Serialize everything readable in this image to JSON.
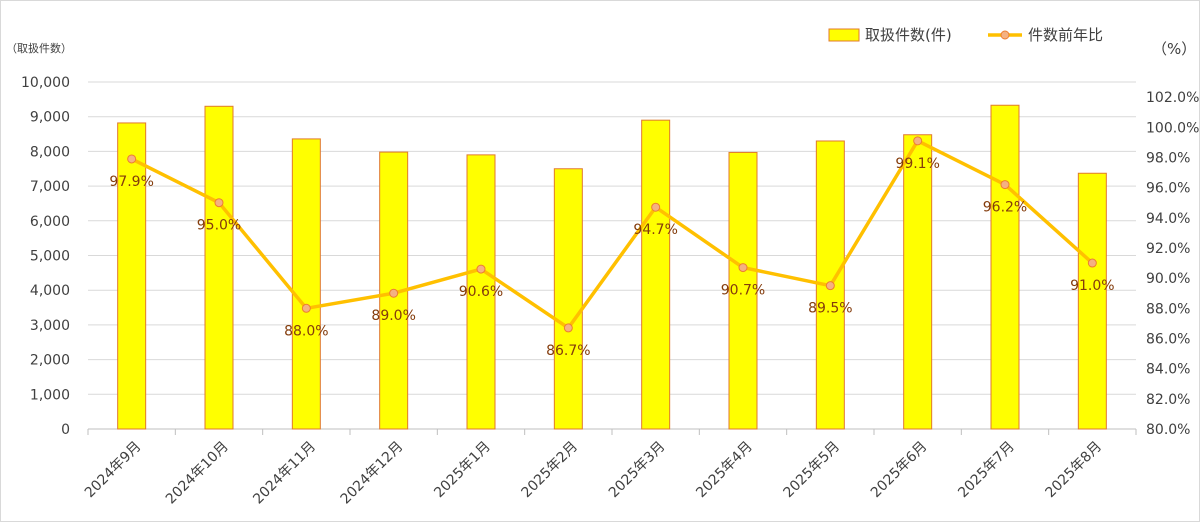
{
  "chart_data": {
    "type": "bar",
    "categories": [
      "2024年9月",
      "2024年10月",
      "2024年11月",
      "2024年12月",
      "2025年1月",
      "2025年2月",
      "2025年3月",
      "2025年4月",
      "2025年5月",
      "2025年6月",
      "2025年7月",
      "2025年8月"
    ],
    "series": [
      {
        "name": "取扱件数(件)",
        "type": "bar",
        "axis": "left",
        "color": "#ffff00",
        "values": [
          8820,
          9300,
          8360,
          7980,
          7900,
          7500,
          8900,
          7970,
          8300,
          8480,
          9330,
          7370
        ]
      },
      {
        "name": "件数前年比",
        "type": "line",
        "axis": "right",
        "color": "#ffc000",
        "values": [
          97.9,
          95.0,
          88.0,
          89.0,
          90.6,
          86.7,
          94.7,
          90.7,
          89.5,
          99.1,
          96.2,
          91.0
        ],
        "labels": [
          "97.9%",
          "95.0%",
          "88.0%",
          "89.0%",
          "90.6%",
          "86.7%",
          "94.7%",
          "90.7%",
          "89.5%",
          "99.1%",
          "96.2%",
          "91.0%"
        ]
      }
    ],
    "y_left": {
      "label": "（取扱件数）",
      "range": [
        0,
        10000
      ],
      "ticks": [
        "0",
        "1,000",
        "2,000",
        "3,000",
        "4,000",
        "5,000",
        "6,000",
        "7,000",
        "8,000",
        "9,000",
        "10,000"
      ]
    },
    "y_right": {
      "label": "（%）",
      "range": [
        80,
        103
      ],
      "ticks": [
        "80.0%",
        "82.0%",
        "84.0%",
        "86.0%",
        "88.0%",
        "90.0%",
        "92.0%",
        "94.0%",
        "96.0%",
        "98.0%",
        "100.0%",
        "102.0%"
      ]
    },
    "legend_position": "top-right",
    "grid": true
  }
}
